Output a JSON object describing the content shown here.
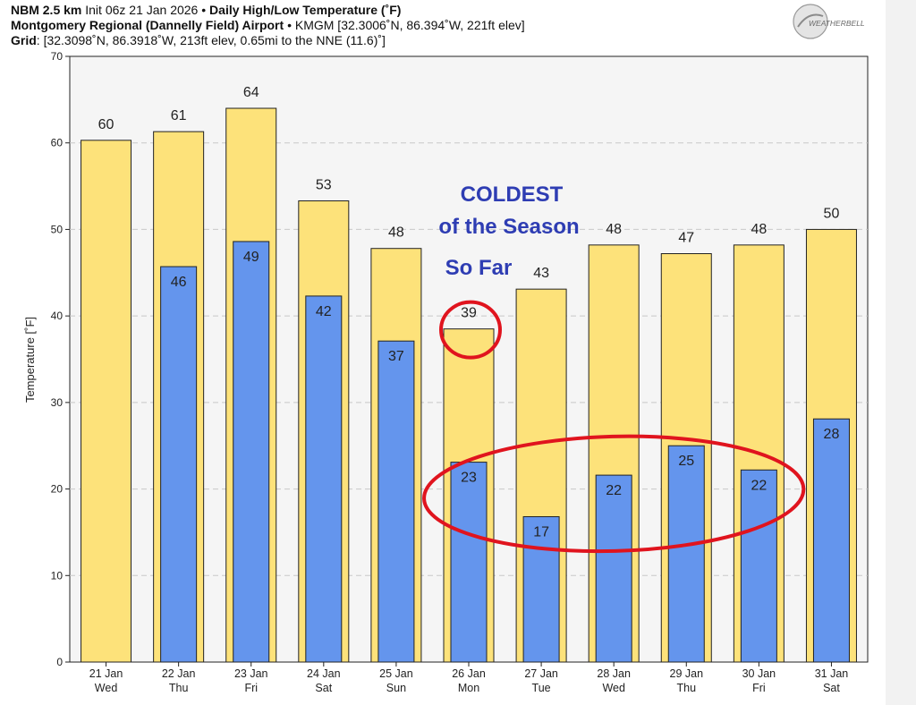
{
  "header": {
    "line1_bold": "NBM 2.5 km",
    "line1_init": "Init 06z 21 Jan 2026",
    "line1_sep": "•",
    "line1_product": "Daily High/Low Temperature (˚F)",
    "line2_station": "Montgomery Regional (Dannelly Field) Airport",
    "line2_info": "KMGM [32.3006˚N, 86.394˚W, 221ft elev]",
    "line3_label": "Grid",
    "line3_info": "[32.3098˚N, 86.3918˚W, 213ft elev, 0.65mi to the NNE (11.6)˚]"
  },
  "logo": {
    "text": "WEATHERBELL"
  },
  "annotation": {
    "line1": "COLDEST",
    "line2": "of the Season",
    "line3": "So Far",
    "color": "#2e3db3"
  },
  "colors": {
    "high": "#fde27a",
    "low": "#6495ed",
    "circle": "#e0141e",
    "plot_bg": "#f5f5f5",
    "grid": "#c8c8c8"
  },
  "chart_data": {
    "type": "bar",
    "ylabel": "Temperature [˚F]",
    "ylim": [
      0,
      70
    ],
    "yticks": [
      0,
      10,
      20,
      30,
      40,
      50,
      60,
      70
    ],
    "grid": true,
    "categories": [
      [
        "21 Jan",
        "Wed"
      ],
      [
        "22 Jan",
        "Thu"
      ],
      [
        "23 Jan",
        "Fri"
      ],
      [
        "24 Jan",
        "Sat"
      ],
      [
        "25 Jan",
        "Sun"
      ],
      [
        "26 Jan",
        "Mon"
      ],
      [
        "27 Jan",
        "Tue"
      ],
      [
        "28 Jan",
        "Wed"
      ],
      [
        "29 Jan",
        "Thu"
      ],
      [
        "30 Jan",
        "Fri"
      ],
      [
        "31 Jan",
        "Sat"
      ]
    ],
    "series": [
      {
        "name": "High",
        "values": [
          60.3,
          61.3,
          64.0,
          53.3,
          47.8,
          38.5,
          43.1,
          48.2,
          47.2,
          48.2,
          50.0
        ],
        "labels": [
          "60",
          "61",
          "64",
          "53",
          "48",
          "39",
          "43",
          "48",
          "47",
          "48",
          "50"
        ]
      },
      {
        "name": "Low",
        "values": [
          null,
          45.7,
          48.6,
          42.3,
          37.1,
          23.1,
          16.8,
          21.6,
          25.0,
          22.2,
          28.1
        ],
        "labels": [
          "",
          "46",
          "49",
          "42",
          "37",
          "23",
          "17",
          "22",
          "25",
          "22",
          "28"
        ]
      }
    ],
    "highlight": {
      "single_circle_category": "26 Jan",
      "group_ellipse_categories": [
        "26 Jan",
        "27 Jan",
        "28 Jan",
        "29 Jan",
        "30 Jan"
      ]
    }
  }
}
